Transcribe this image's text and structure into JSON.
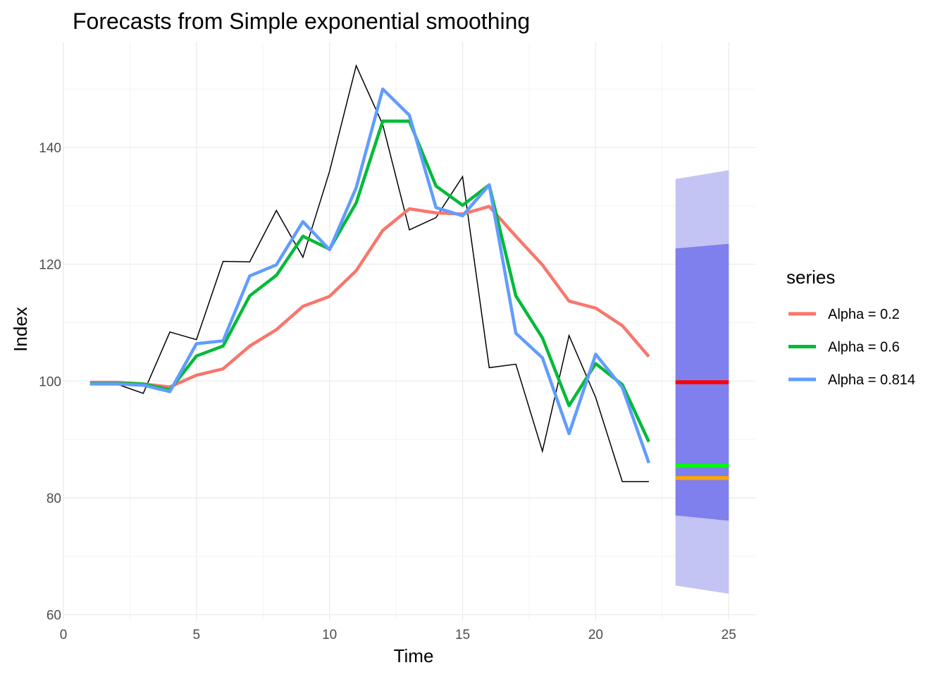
{
  "chart_data": {
    "type": "line",
    "title": "Forecasts from Simple exponential smoothing",
    "xlabel": "Time",
    "ylabel": "Index",
    "xlim": [
      0,
      26
    ],
    "ylim": [
      59,
      158
    ],
    "x_ticks": [
      0,
      5,
      10,
      15,
      20,
      25
    ],
    "y_ticks": [
      60,
      80,
      100,
      120,
      140
    ],
    "grid": true,
    "legend_title": "series",
    "legend_position": "right",
    "observed": {
      "x": [
        1,
        2,
        3,
        4,
        5,
        6,
        7,
        8,
        9,
        10,
        11,
        12,
        13,
        14,
        15,
        16,
        17,
        18,
        19,
        20,
        21,
        22
      ],
      "values": [
        99.4,
        99.5,
        97.9,
        108.4,
        107.1,
        120.5,
        120.4,
        129.2,
        121.2,
        135.9,
        154.0,
        143.9,
        125.9,
        128.0,
        135.0,
        102.3,
        102.9,
        88.0,
        107.8,
        97.2,
        82.8,
        82.8
      ],
      "color": "#000000"
    },
    "series": [
      {
        "name": "Alpha = 0.2",
        "color": "#F8766D",
        "x": [
          1,
          2,
          3,
          4,
          5,
          6,
          7,
          8,
          9,
          10,
          11,
          12,
          13,
          14,
          15,
          16,
          17,
          18,
          19,
          20,
          21,
          22
        ],
        "values": [
          99.8,
          99.8,
          99.5,
          99.0,
          101.0,
          102.1,
          106.0,
          108.8,
          112.8,
          114.5,
          118.9,
          125.8,
          129.5,
          128.8,
          128.6,
          129.9,
          124.8,
          119.9,
          113.7,
          112.5,
          109.5,
          104.2
        ]
      },
      {
        "name": "Alpha = 0.6",
        "color": "#00BA38",
        "x": [
          1,
          2,
          3,
          4,
          5,
          6,
          7,
          8,
          9,
          10,
          11,
          12,
          13,
          14,
          15,
          16,
          17,
          18,
          19,
          20,
          21,
          22
        ],
        "values": [
          99.6,
          99.6,
          99.5,
          98.5,
          104.3,
          106.0,
          114.6,
          118.1,
          124.8,
          122.6,
          130.5,
          144.5,
          144.5,
          133.4,
          130.1,
          133.6,
          114.6,
          107.4,
          95.8,
          103.0,
          99.4,
          89.6
        ]
      },
      {
        "name": "Alpha = 0.814",
        "color": "#619CFF",
        "x": [
          1,
          2,
          3,
          4,
          5,
          6,
          7,
          8,
          9,
          10,
          11,
          12,
          13,
          14,
          15,
          16,
          17,
          18,
          19,
          20,
          21,
          22
        ],
        "values": [
          99.5,
          99.5,
          99.3,
          98.2,
          106.4,
          106.9,
          118.0,
          119.9,
          127.3,
          122.5,
          133.1,
          150.0,
          145.5,
          129.7,
          128.3,
          133.6,
          108.2,
          104.0,
          91.0,
          104.6,
          98.9,
          86.0
        ]
      }
    ],
    "forecast": {
      "x_range": [
        23,
        25
      ],
      "interval_95": {
        "lower": [
          65.0,
          63.6
        ],
        "upper": [
          134.6,
          136.1
        ],
        "color": "#C3C3F4"
      },
      "interval_80": {
        "lower": [
          77.0,
          76.1
        ],
        "upper": [
          122.7,
          123.5
        ],
        "color": "#7F7FEE"
      },
      "point_forecasts": [
        {
          "value": 99.8,
          "color": "#FF0000"
        },
        {
          "value": 85.5,
          "color": "#00FF00"
        },
        {
          "value": 83.4,
          "color": "#FFA500"
        }
      ]
    }
  }
}
